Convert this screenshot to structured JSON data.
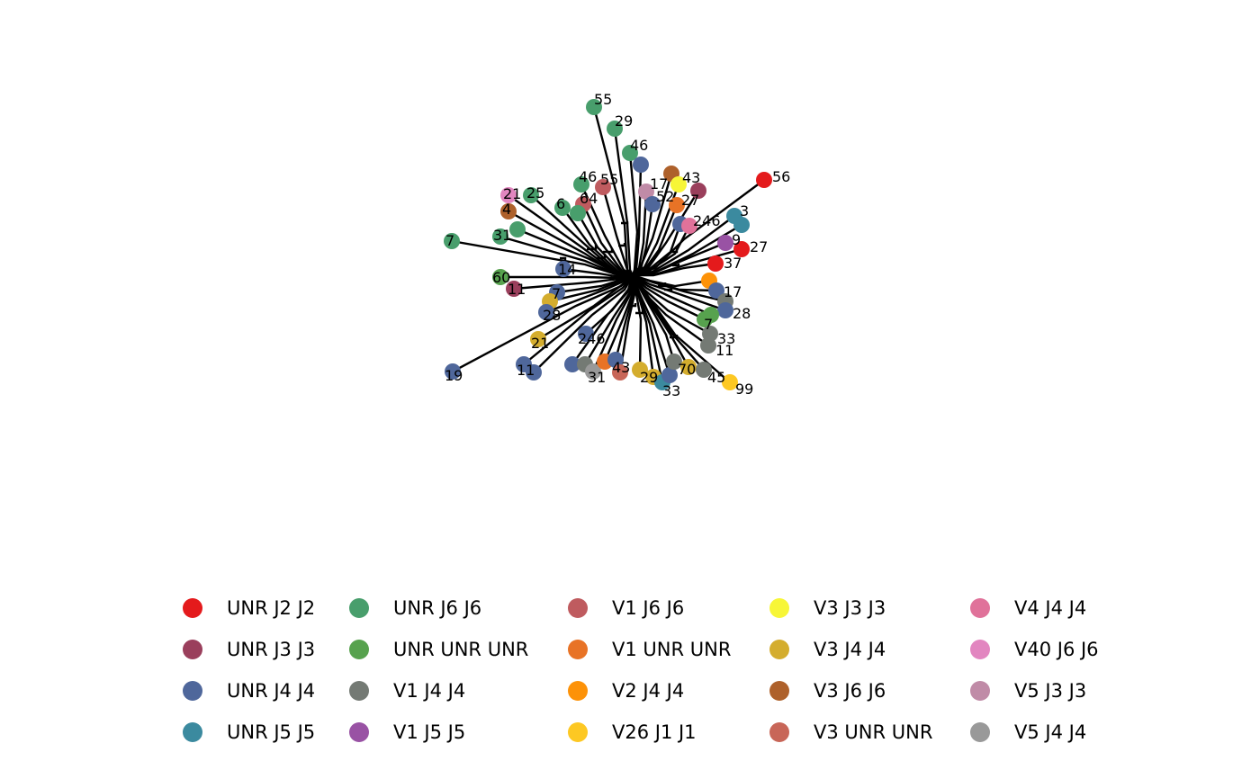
{
  "colors": {
    "UNR J2 J2": "#e41a1c",
    "UNR J3 J3": "#9a3f5c",
    "UNR J4 J4": "#4f679b",
    "UNR J5 J5": "#3b8a9f",
    "UNR J6 J6": "#489e6c",
    "UNR UNR UNR": "#57a24e",
    "V1 J4 J4": "#747a74",
    "V1 J5 J5": "#9952a4",
    "V1 J6 J6": "#bf5b5f",
    "V1 UNR UNR": "#e87326",
    "V2 J4 J4": "#fd9208",
    "V26 J1 J1": "#fdc823",
    "V3 J3 J3": "#f7f637",
    "V3 J4 J4": "#d4ad2e",
    "V3 J6 J6": "#ae612b",
    "V3 UNR UNR": "#c86658",
    "V4 J4 J4": "#e0729a",
    "V40 J6 J6": "#e286c0",
    "V5 J3 J3": "#c08ba7",
    "V5 J4 J4": "#999999"
  },
  "legend": {
    "columns": [
      [
        "UNR J2 J2",
        "UNR J3 J3",
        "UNR J4 J4",
        "UNR J5 J5"
      ],
      [
        "UNR J6 J6",
        "UNR UNR UNR",
        "V1 J4 J4",
        "V1 J5 J5"
      ],
      [
        "V1 J6 J6",
        "V1 UNR UNR",
        "V2 J4 J4",
        "V26 J1 J1"
      ],
      [
        "V3 J3 J3",
        "V3 J4 J4",
        "V3 J6 J6",
        "V3 UNR UNR"
      ],
      [
        "V4 J4 J4",
        "V40 J6 J6",
        "V5 J3 J3",
        "V5 J4 J4"
      ]
    ]
  },
  "tree": {
    "tips": [
      {
        "label": "55",
        "group": "UNR J6 J6"
      },
      {
        "label": "29",
        "group": "UNR J6 J6"
      },
      {
        "label": "46",
        "group": "UNR J6 J6"
      },
      {
        "label": "",
        "group": "UNR J4 J4"
      },
      {
        "label": "43",
        "group": "V3 J6 J6"
      },
      {
        "label": "",
        "group": "V3 J3 J3"
      },
      {
        "label": "",
        "group": "UNR J3 J3"
      },
      {
        "label": "56",
        "group": "UNR J2 J2"
      },
      {
        "label": "17",
        "group": "V5 J3 J3"
      },
      {
        "label": "52",
        "group": "UNR J4 J4"
      },
      {
        "label": "27",
        "group": "V1 UNR UNR"
      },
      {
        "label": "46",
        "group": "UNR J6 J6"
      },
      {
        "label": "55",
        "group": "V1 J6 J6"
      },
      {
        "label": "64",
        "group": "V1 J6 J6"
      },
      {
        "label": "",
        "group": "UNR J6 J6"
      },
      {
        "label": "6",
        "group": "UNR J6 J6"
      },
      {
        "label": "25",
        "group": "UNR J6 J6"
      },
      {
        "label": "21",
        "group": "V40 J6 J6"
      },
      {
        "label": "4",
        "group": "V3 J6 J6"
      },
      {
        "label": "31",
        "group": "UNR J6 J6"
      },
      {
        "label": "",
        "group": "UNR J6 J6"
      },
      {
        "label": "7",
        "group": "UNR J6 J6"
      },
      {
        "label": "246",
        "group": "UNR J4 J4"
      },
      {
        "label": "",
        "group": "V4 J4 J4"
      },
      {
        "label": "3",
        "group": "UNR J5 J5"
      },
      {
        "label": "",
        "group": "UNR J5 J5"
      },
      {
        "label": "9",
        "group": "V1 J5 J5"
      },
      {
        "label": "27",
        "group": "UNR J2 J2"
      },
      {
        "label": "37",
        "group": "UNR J2 J2"
      },
      {
        "label": "14",
        "group": "UNR J4 J4"
      },
      {
        "label": "60",
        "group": "UNR UNR UNR"
      },
      {
        "label": "11",
        "group": "UNR J3 J3"
      },
      {
        "label": "7",
        "group": "UNR J4 J4"
      },
      {
        "label": "",
        "group": "V3 J4 J4"
      },
      {
        "label": "28",
        "group": "UNR J4 J4"
      },
      {
        "label": "",
        "group": "V2 J4 J4"
      },
      {
        "label": "17",
        "group": "UNR J4 J4"
      },
      {
        "label": "",
        "group": "V1 J4 J4"
      },
      {
        "label": "28",
        "group": "UNR J4 J4"
      },
      {
        "label": "7",
        "group": "UNR UNR UNR"
      },
      {
        "label": "",
        "group": "UNR UNR UNR"
      },
      {
        "label": "33",
        "group": "V1 J4 J4"
      },
      {
        "label": "11",
        "group": "V1 J4 J4"
      },
      {
        "label": "21",
        "group": "V3 J4 J4"
      },
      {
        "label": "19",
        "group": "UNR J4 J4"
      },
      {
        "label": "11",
        "group": "UNR J4 J4"
      },
      {
        "label": "",
        "group": "UNR J4 J4"
      },
      {
        "label": "246",
        "group": "UNR J4 J4"
      },
      {
        "label": "",
        "group": "UNR J4 J4"
      },
      {
        "label": "",
        "group": "V1 J4 J4"
      },
      {
        "label": "31",
        "group": "V5 J4 J4"
      },
      {
        "label": "43",
        "group": "V1 UNR UNR"
      },
      {
        "label": "",
        "group": "UNR J4 J4"
      },
      {
        "label": "",
        "group": "V3 UNR UNR"
      },
      {
        "label": "29",
        "group": "V3 J4 J4"
      },
      {
        "label": "",
        "group": "V3 J4 J4"
      },
      {
        "label": "33",
        "group": "UNR J5 J5"
      },
      {
        "label": "",
        "group": "UNR J4 J4"
      },
      {
        "label": "70",
        "group": "V1 J4 J4"
      },
      {
        "label": "",
        "group": "V3 J4 J4"
      },
      {
        "label": "45",
        "group": "V1 J4 J4"
      },
      {
        "label": "99",
        "group": "V26 J1 J1"
      }
    ]
  }
}
